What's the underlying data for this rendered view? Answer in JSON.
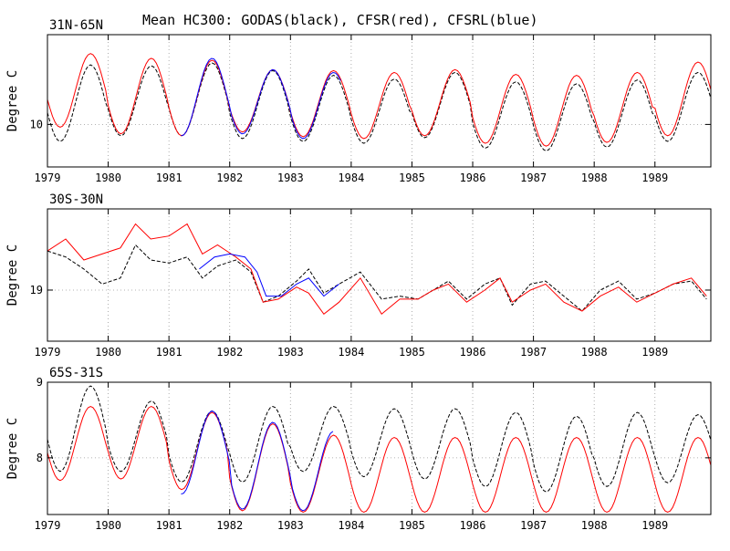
{
  "title": "Mean HC300: GODAS(black), CFSR(red), CFSRL(blue)",
  "colors": {
    "GODAS": "#000000",
    "CFSR": "#ff0000",
    "CFSRL": "#0000ff"
  },
  "chart_data": [
    {
      "type": "line",
      "title": "31N-65N",
      "ylabel": "Degree C",
      "xlim": [
        1979.0,
        1989.92
      ],
      "ylim": [
        9.55,
        10.95
      ],
      "x_ticks": [
        1979,
        1980,
        1981,
        1982,
        1983,
        1984,
        1985,
        1986,
        1987,
        1988,
        1989
      ],
      "y_ticks": [
        10
      ],
      "grid": true,
      "series": [
        {
          "name": "GODAS",
          "style": "dashed",
          "years": [
            1979,
            1980,
            1981,
            1982,
            1983,
            1984,
            1985,
            1986,
            1987,
            1988,
            1989
          ],
          "min": [
            9.82,
            9.88,
            9.88,
            9.85,
            9.82,
            9.8,
            9.86,
            9.75,
            9.72,
            9.76,
            9.82
          ],
          "max": [
            10.63,
            10.62,
            10.65,
            10.57,
            10.52,
            10.48,
            10.55,
            10.45,
            10.43,
            10.47,
            10.55
          ]
        },
        {
          "name": "CFSR",
          "style": "solid",
          "years": [
            1979,
            1980,
            1981,
            1982,
            1983,
            1984,
            1985,
            1986,
            1987,
            1988,
            1989
          ],
          "min": [
            9.97,
            9.9,
            9.88,
            9.92,
            9.87,
            9.85,
            9.88,
            9.8,
            9.77,
            9.81,
            9.88
          ],
          "max": [
            10.75,
            10.7,
            10.68,
            10.58,
            10.57,
            10.55,
            10.58,
            10.53,
            10.52,
            10.55,
            10.66
          ]
        },
        {
          "name": "CFSRL",
          "style": "solid",
          "years": [
            1981,
            1982,
            1983
          ],
          "min": [
            9.88,
            9.9,
            9.85
          ],
          "max": [
            10.7,
            10.58,
            10.55
          ],
          "start": 1981.2,
          "end": 1983.85
        }
      ]
    },
    {
      "type": "line",
      "title": "30S-30N",
      "ylabel": "Degree C",
      "xlim": [
        1979.0,
        1989.92
      ],
      "ylim": [
        18.83,
        19.27
      ],
      "x_ticks": [
        1979,
        1980,
        1981,
        1982,
        1983,
        1984,
        1985,
        1986,
        1987,
        1988,
        1989
      ],
      "y_ticks": [
        19
      ],
      "grid": true,
      "series": [
        {
          "name": "GODAS",
          "style": "dashed",
          "points": [
            [
              1979.0,
              19.13
            ],
            [
              1979.3,
              19.11
            ],
            [
              1979.6,
              19.07
            ],
            [
              1979.9,
              19.02
            ],
            [
              1980.2,
              19.04
            ],
            [
              1980.45,
              19.15
            ],
            [
              1980.7,
              19.1
            ],
            [
              1981.0,
              19.09
            ],
            [
              1981.3,
              19.11
            ],
            [
              1981.55,
              19.04
            ],
            [
              1981.8,
              19.08
            ],
            [
              1982.1,
              19.1
            ],
            [
              1982.35,
              19.06
            ],
            [
              1982.55,
              18.96
            ],
            [
              1982.8,
              18.98
            ],
            [
              1983.1,
              19.03
            ],
            [
              1983.3,
              19.07
            ],
            [
              1983.55,
              18.99
            ],
            [
              1983.8,
              19.02
            ],
            [
              1984.15,
              19.06
            ],
            [
              1984.5,
              18.97
            ],
            [
              1984.8,
              18.98
            ],
            [
              1985.1,
              18.97
            ],
            [
              1985.35,
              19.0
            ],
            [
              1985.6,
              19.03
            ],
            [
              1985.9,
              18.97
            ],
            [
              1986.2,
              19.02
            ],
            [
              1986.45,
              19.04
            ],
            [
              1986.65,
              18.95
            ],
            [
              1986.95,
              19.02
            ],
            [
              1987.2,
              19.03
            ],
            [
              1987.5,
              18.98
            ],
            [
              1987.8,
              18.93
            ],
            [
              1988.1,
              19.0
            ],
            [
              1988.4,
              19.03
            ],
            [
              1988.7,
              18.97
            ],
            [
              1989.0,
              18.99
            ],
            [
              1989.3,
              19.02
            ],
            [
              1989.6,
              19.03
            ],
            [
              1989.85,
              18.97
            ]
          ]
        },
        {
          "name": "CFSR",
          "style": "solid",
          "points": [
            [
              1979.0,
              19.13
            ],
            [
              1979.3,
              19.17
            ],
            [
              1979.6,
              19.1
            ],
            [
              1979.9,
              19.12
            ],
            [
              1980.2,
              19.14
            ],
            [
              1980.45,
              19.22
            ],
            [
              1980.7,
              19.17
            ],
            [
              1981.0,
              19.18
            ],
            [
              1981.3,
              19.22
            ],
            [
              1981.55,
              19.12
            ],
            [
              1981.8,
              19.15
            ],
            [
              1982.1,
              19.11
            ],
            [
              1982.35,
              19.07
            ],
            [
              1982.55,
              18.96
            ],
            [
              1982.8,
              18.97
            ],
            [
              1983.1,
              19.01
            ],
            [
              1983.3,
              18.99
            ],
            [
              1983.55,
              18.92
            ],
            [
              1983.8,
              18.96
            ],
            [
              1984.15,
              19.04
            ],
            [
              1984.5,
              18.92
            ],
            [
              1984.8,
              18.97
            ],
            [
              1985.1,
              18.97
            ],
            [
              1985.35,
              19.0
            ],
            [
              1985.6,
              19.02
            ],
            [
              1985.9,
              18.96
            ],
            [
              1986.2,
              19.0
            ],
            [
              1986.45,
              19.04
            ],
            [
              1986.65,
              18.96
            ],
            [
              1986.95,
              19.0
            ],
            [
              1987.2,
              19.02
            ],
            [
              1987.5,
              18.96
            ],
            [
              1987.8,
              18.93
            ],
            [
              1988.1,
              18.98
            ],
            [
              1988.4,
              19.01
            ],
            [
              1988.7,
              18.96
            ],
            [
              1989.0,
              18.99
            ],
            [
              1989.3,
              19.02
            ],
            [
              1989.6,
              19.04
            ],
            [
              1989.85,
              18.98
            ]
          ]
        },
        {
          "name": "CFSRL",
          "style": "solid",
          "points": [
            [
              1981.5,
              19.07
            ],
            [
              1981.75,
              19.11
            ],
            [
              1982.0,
              19.12
            ],
            [
              1982.25,
              19.11
            ],
            [
              1982.45,
              19.06
            ],
            [
              1982.6,
              18.98
            ],
            [
              1982.85,
              18.98
            ],
            [
              1983.1,
              19.02
            ],
            [
              1983.3,
              19.04
            ],
            [
              1983.55,
              18.98
            ],
            [
              1983.8,
              19.02
            ]
          ]
        }
      ]
    },
    {
      "type": "line",
      "title": "65S-31S",
      "ylabel": "Degree C",
      "xlim": [
        1979.0,
        1989.92
      ],
      "ylim": [
        7.25,
        9.0
      ],
      "x_ticks": [
        1979,
        1980,
        1981,
        1982,
        1983,
        1984,
        1985,
        1986,
        1987,
        1988,
        1989
      ],
      "y_ticks": [
        8,
        9
      ],
      "grid": true,
      "series": [
        {
          "name": "GODAS",
          "style": "dashed",
          "years": [
            1979,
            1980,
            1981,
            1982,
            1983,
            1984,
            1985,
            1986,
            1987,
            1988,
            1989
          ],
          "min": [
            7.82,
            7.82,
            7.68,
            7.68,
            7.82,
            7.75,
            7.72,
            7.62,
            7.55,
            7.62,
            7.67
          ],
          "max": [
            8.95,
            8.75,
            8.62,
            8.68,
            8.68,
            8.65,
            8.65,
            8.6,
            8.55,
            8.6,
            8.57
          ]
        },
        {
          "name": "CFSR",
          "style": "solid",
          "years": [
            1979,
            1980,
            1981,
            1982,
            1983,
            1984,
            1985,
            1986,
            1987,
            1988,
            1989
          ],
          "min": [
            7.7,
            7.72,
            7.58,
            7.3,
            7.28,
            7.28,
            7.28,
            7.28,
            7.28,
            7.28,
            7.28
          ],
          "max": [
            8.68,
            8.68,
            8.6,
            8.45,
            8.3,
            8.27,
            8.27,
            8.27,
            8.27,
            8.27,
            8.27
          ]
        },
        {
          "name": "CFSRL",
          "style": "solid",
          "years": [
            1981,
            1982,
            1983
          ],
          "min": [
            7.52,
            7.32,
            7.3
          ],
          "max": [
            8.62,
            8.47,
            8.35
          ],
          "start": 1981.2,
          "end": 1983.7
        }
      ]
    }
  ]
}
